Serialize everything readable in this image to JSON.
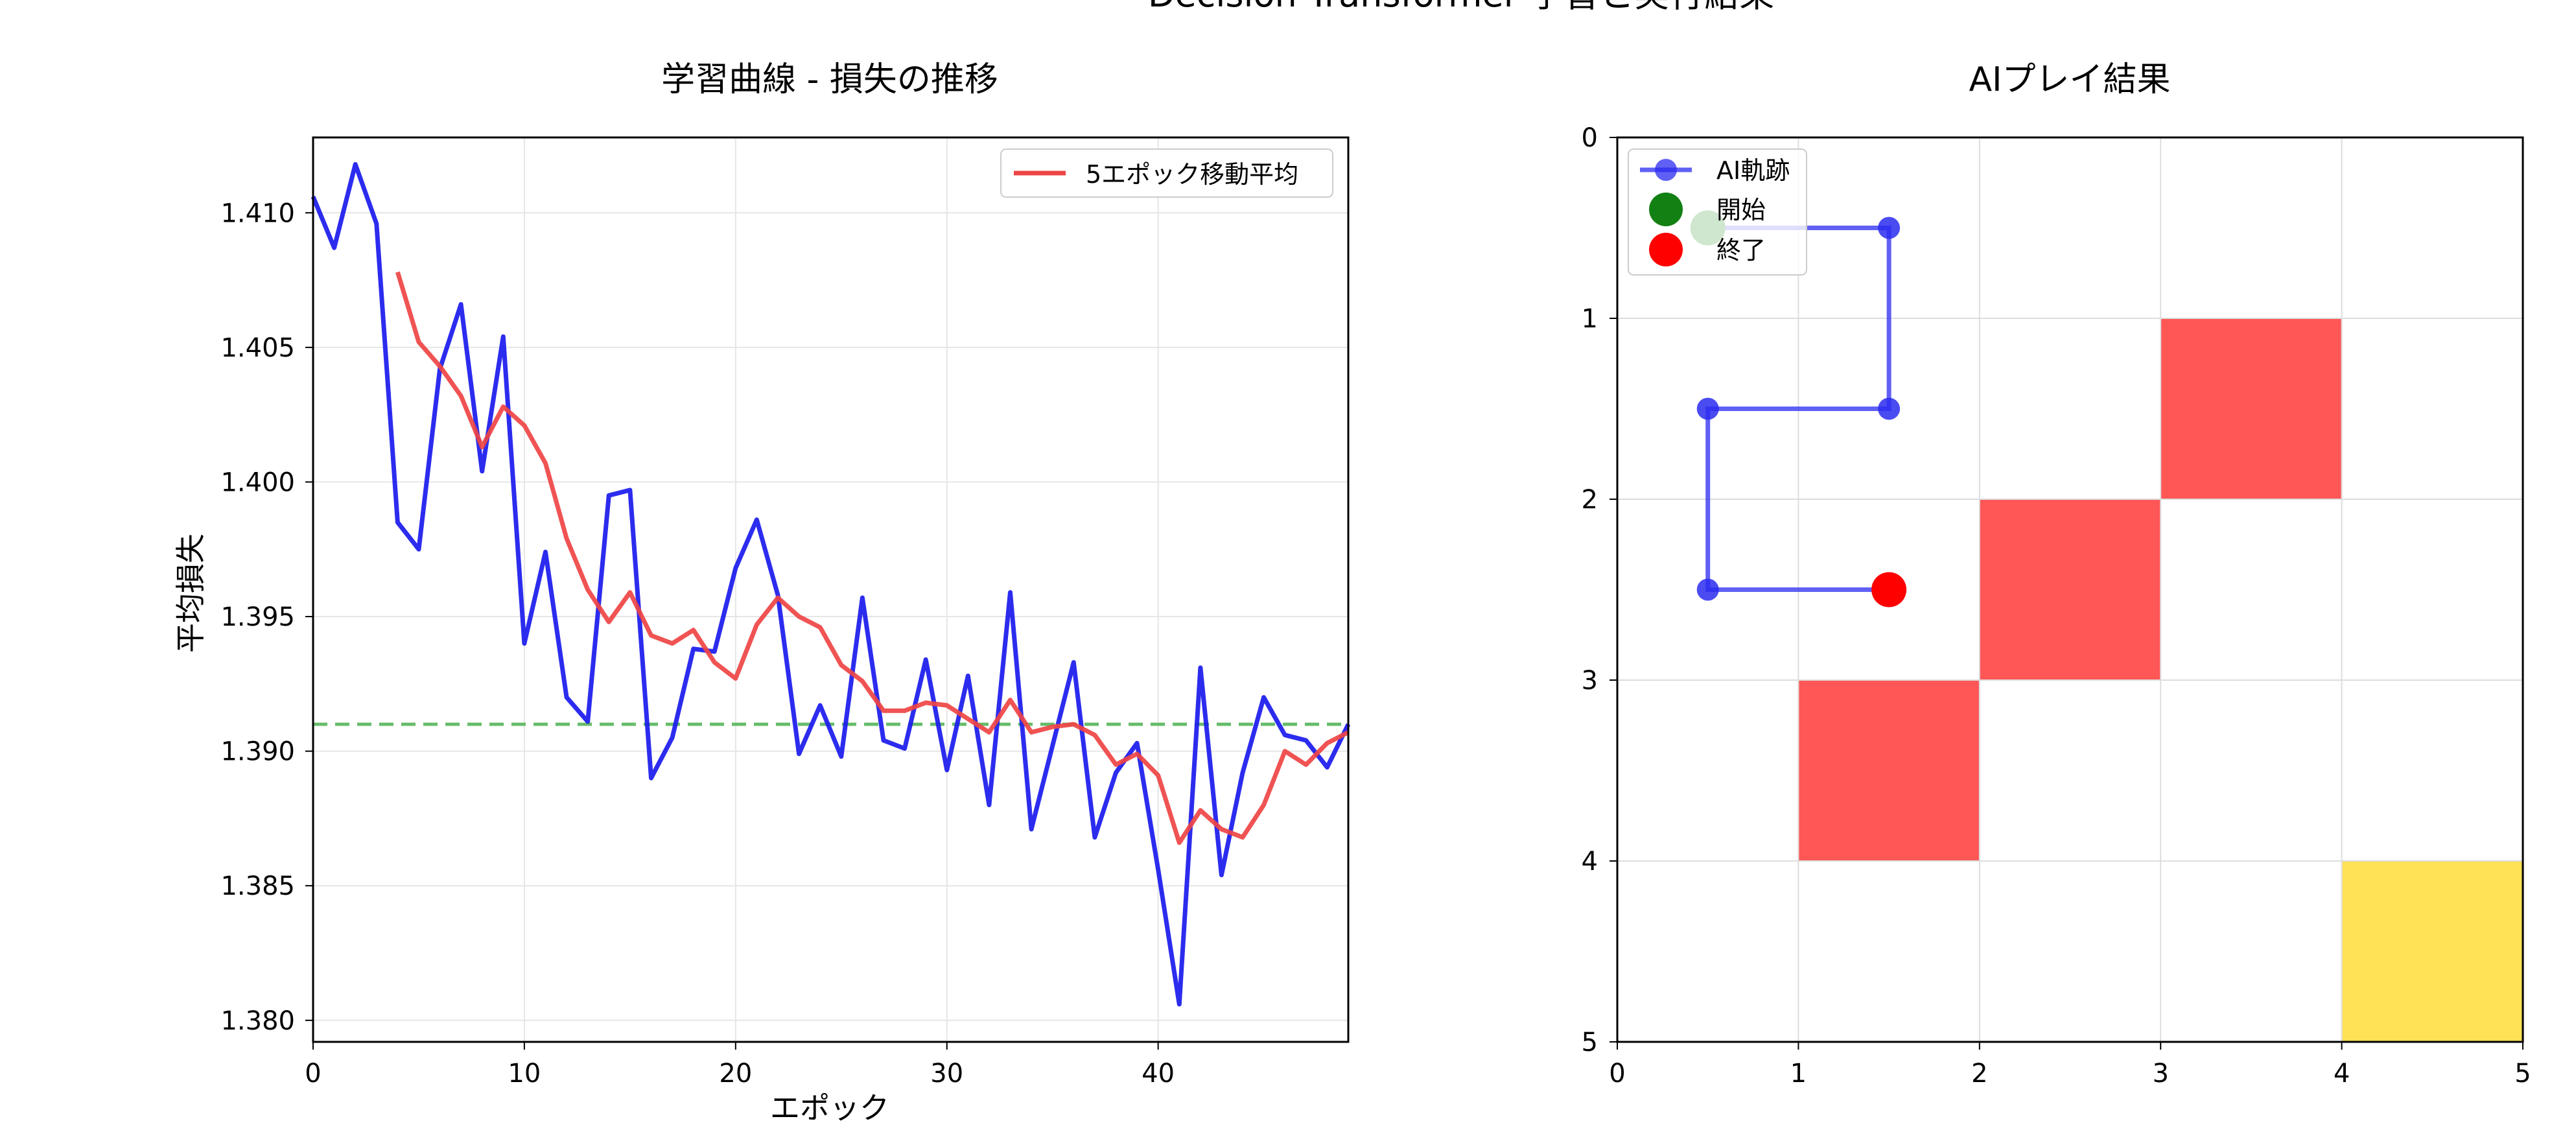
{
  "figure": {
    "suptitle": "Decision Transformer 学習と実行結果"
  },
  "chart_data": [
    {
      "type": "line",
      "title": "学習曲線 - 損失の推移",
      "xlabel": "エポック",
      "ylabel": "平均損失",
      "xlim": [
        0,
        49
      ],
      "ylim": [
        1.3792,
        1.4128
      ],
      "xticks": [
        0,
        10,
        20,
        30,
        40
      ],
      "yticks": [
        1.38,
        1.385,
        1.39,
        1.395,
        1.4,
        1.405,
        1.41
      ],
      "grid": true,
      "legend_position": "top-right",
      "reference_line": {
        "y": 1.391,
        "color": "#66bb6a",
        "style": "dashed"
      },
      "series": [
        {
          "color": "#1a1aee",
          "x": [
            0,
            1,
            2,
            3,
            4,
            5,
            6,
            7,
            8,
            9,
            10,
            11,
            12,
            13,
            14,
            15,
            16,
            17,
            18,
            19,
            20,
            21,
            22,
            23,
            24,
            25,
            26,
            27,
            28,
            29,
            30,
            31,
            32,
            33,
            34,
            35,
            36,
            37,
            38,
            39,
            40,
            41,
            42,
            43,
            44,
            45,
            46,
            47,
            48,
            49
          ],
          "values": [
            1.4106,
            1.4087,
            1.4118,
            1.4096,
            1.3985,
            1.3975,
            1.4042,
            1.4066,
            1.4004,
            1.4054,
            1.394,
            1.3974,
            1.392,
            1.3911,
            1.3995,
            1.3997,
            1.389,
            1.3905,
            1.3938,
            1.3937,
            1.3968,
            1.3986,
            1.3958,
            1.3899,
            1.3917,
            1.3898,
            1.3957,
            1.3904,
            1.3901,
            1.3934,
            1.3893,
            1.3928,
            1.388,
            1.3959,
            1.3871,
            1.3902,
            1.3933,
            1.3868,
            1.3892,
            1.3903,
            1.3856,
            1.3806,
            1.3931,
            1.3854,
            1.3892,
            1.392,
            1.3906,
            1.3904,
            1.3894,
            1.391
          ]
        },
        {
          "name": "5エポック移動平均",
          "color": "#ef4444",
          "x": [
            4,
            5,
            6,
            7,
            8,
            9,
            10,
            11,
            12,
            13,
            14,
            15,
            16,
            17,
            18,
            19,
            20,
            21,
            22,
            23,
            24,
            25,
            26,
            27,
            28,
            29,
            30,
            31,
            32,
            33,
            34,
            35,
            36,
            37,
            38,
            39,
            40,
            41,
            42,
            43,
            44,
            45,
            46,
            47,
            48,
            49
          ],
          "values": [
            1.4078,
            1.4052,
            1.4043,
            1.4032,
            1.4013,
            1.4028,
            1.4021,
            1.4007,
            1.3979,
            1.396,
            1.3948,
            1.3959,
            1.3943,
            1.394,
            1.3945,
            1.3933,
            1.3927,
            1.3947,
            1.3957,
            1.395,
            1.3946,
            1.3932,
            1.3926,
            1.3915,
            1.3915,
            1.3918,
            1.3917,
            1.3912,
            1.3907,
            1.3919,
            1.3907,
            1.3909,
            1.391,
            1.3906,
            1.3895,
            1.3899,
            1.3891,
            1.3866,
            1.3878,
            1.3871,
            1.3868,
            1.388,
            1.39,
            1.3895,
            1.3903,
            1.3907
          ]
        }
      ]
    },
    {
      "type": "grid",
      "title": "AIプレイ結果",
      "xlim": [
        0,
        5
      ],
      "ylim": [
        5,
        0
      ],
      "xticks": [
        0,
        1,
        2,
        3,
        4,
        5
      ],
      "yticks": [
        0,
        1,
        2,
        3,
        4,
        5
      ],
      "grid": true,
      "legend_position": "top-left",
      "cells": [
        {
          "col": 3,
          "row": 1,
          "color": "#ff4d4d"
        },
        {
          "col": 2,
          "row": 2,
          "color": "#ff4d4d"
        },
        {
          "col": 1,
          "row": 3,
          "color": "#ff4d4d"
        },
        {
          "col": 4,
          "row": 4,
          "color": "#ffe04d"
        }
      ],
      "trajectory": {
        "name": "AI軌跡",
        "color": "#2b2bf0",
        "points": [
          [
            0.5,
            0.5
          ],
          [
            1.5,
            0.5
          ],
          [
            1.5,
            1.5
          ],
          [
            0.5,
            1.5
          ],
          [
            0.5,
            2.5
          ],
          [
            1.5,
            2.5
          ]
        ]
      },
      "start": {
        "name": "開始",
        "x": 0.5,
        "y": 0.5,
        "color": "#138013"
      },
      "end": {
        "name": "終了",
        "x": 1.5,
        "y": 2.5,
        "color": "#ff0000"
      }
    }
  ]
}
